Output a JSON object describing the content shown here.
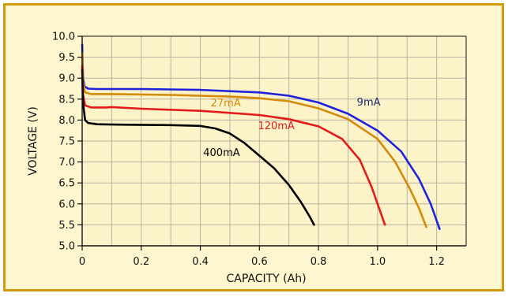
{
  "chart_data": {
    "type": "line",
    "title": "",
    "xlabel": "CAPACITY (Ah)",
    "ylabel": "VOLTAGE (V)",
    "xlim": [
      0,
      1.3
    ],
    "ylim": [
      5.0,
      10.0
    ],
    "xticks": [
      0,
      0.2,
      0.4,
      0.6,
      0.8,
      1.0,
      1.2
    ],
    "xtick_labels": [
      "0",
      "0.2",
      "0.4",
      "0.6",
      "0.8",
      "1.0",
      "1.2"
    ],
    "yticks": [
      5.0,
      5.5,
      6.0,
      6.5,
      7.0,
      7.5,
      8.0,
      8.5,
      9.0,
      9.5,
      10.0
    ],
    "ytick_labels": [
      "5.0",
      "5.5",
      "6.0",
      "6.5",
      "7.0",
      "7.5",
      "8.0",
      "8.5",
      "9.0",
      "9.5",
      "10.0"
    ],
    "grid": true,
    "series": [
      {
        "name": "9mA",
        "color": "#1e22dd",
        "label_at": [
          0.93,
          8.35
        ],
        "label_color": "#1f2a6e",
        "points": [
          [
            0,
            9.8
          ],
          [
            0.003,
            9.0
          ],
          [
            0.008,
            8.8
          ],
          [
            0.02,
            8.75
          ],
          [
            0.05,
            8.74
          ],
          [
            0.2,
            8.74
          ],
          [
            0.4,
            8.72
          ],
          [
            0.6,
            8.66
          ],
          [
            0.7,
            8.58
          ],
          [
            0.8,
            8.42
          ],
          [
            0.9,
            8.15
          ],
          [
            1.0,
            7.75
          ],
          [
            1.08,
            7.25
          ],
          [
            1.14,
            6.6
          ],
          [
            1.18,
            6.0
          ],
          [
            1.21,
            5.4
          ]
        ]
      },
      {
        "name": "27mA",
        "color": "#d48a0a",
        "label_at": [
          0.435,
          8.33
        ],
        "label_color": "#d48a0a",
        "points": [
          [
            0,
            9.6
          ],
          [
            0.003,
            8.9
          ],
          [
            0.01,
            8.66
          ],
          [
            0.03,
            8.62
          ],
          [
            0.1,
            8.62
          ],
          [
            0.3,
            8.6
          ],
          [
            0.5,
            8.56
          ],
          [
            0.6,
            8.52
          ],
          [
            0.7,
            8.45
          ],
          [
            0.8,
            8.28
          ],
          [
            0.9,
            8.02
          ],
          [
            1.0,
            7.55
          ],
          [
            1.06,
            7.0
          ],
          [
            1.11,
            6.35
          ],
          [
            1.14,
            5.9
          ],
          [
            1.165,
            5.45
          ]
        ]
      },
      {
        "name": "120mA",
        "color": "#e41a1a",
        "label_at": [
          0.595,
          7.78
        ],
        "label_color": "#e41a1a",
        "points": [
          [
            0,
            9.3
          ],
          [
            0.003,
            8.6
          ],
          [
            0.01,
            8.35
          ],
          [
            0.03,
            8.3
          ],
          [
            0.08,
            8.3
          ],
          [
            0.1,
            8.31
          ],
          [
            0.2,
            8.27
          ],
          [
            0.4,
            8.22
          ],
          [
            0.6,
            8.12
          ],
          [
            0.7,
            8.02
          ],
          [
            0.8,
            7.85
          ],
          [
            0.88,
            7.55
          ],
          [
            0.94,
            7.05
          ],
          [
            0.98,
            6.4
          ],
          [
            1.01,
            5.8
          ],
          [
            1.025,
            5.5
          ]
        ]
      },
      {
        "name": "400mA",
        "color": "#000000",
        "label_at": [
          0.41,
          7.14
        ],
        "label_color": "#000000",
        "points": [
          [
            0,
            9.2
          ],
          [
            0.003,
            8.4
          ],
          [
            0.01,
            8.0
          ],
          [
            0.02,
            7.93
          ],
          [
            0.05,
            7.9
          ],
          [
            0.15,
            7.89
          ],
          [
            0.3,
            7.88
          ],
          [
            0.4,
            7.86
          ],
          [
            0.45,
            7.8
          ],
          [
            0.5,
            7.68
          ],
          [
            0.55,
            7.45
          ],
          [
            0.6,
            7.15
          ],
          [
            0.65,
            6.85
          ],
          [
            0.7,
            6.45
          ],
          [
            0.74,
            6.05
          ],
          [
            0.77,
            5.7
          ],
          [
            0.785,
            5.5
          ]
        ]
      }
    ]
  },
  "colors": {
    "frame_border": "#d39a0e",
    "frame_background": "#fdf6cf",
    "plot_background": "#fcf3c8",
    "grid": "#b8b4a4",
    "axis": "#111111"
  }
}
